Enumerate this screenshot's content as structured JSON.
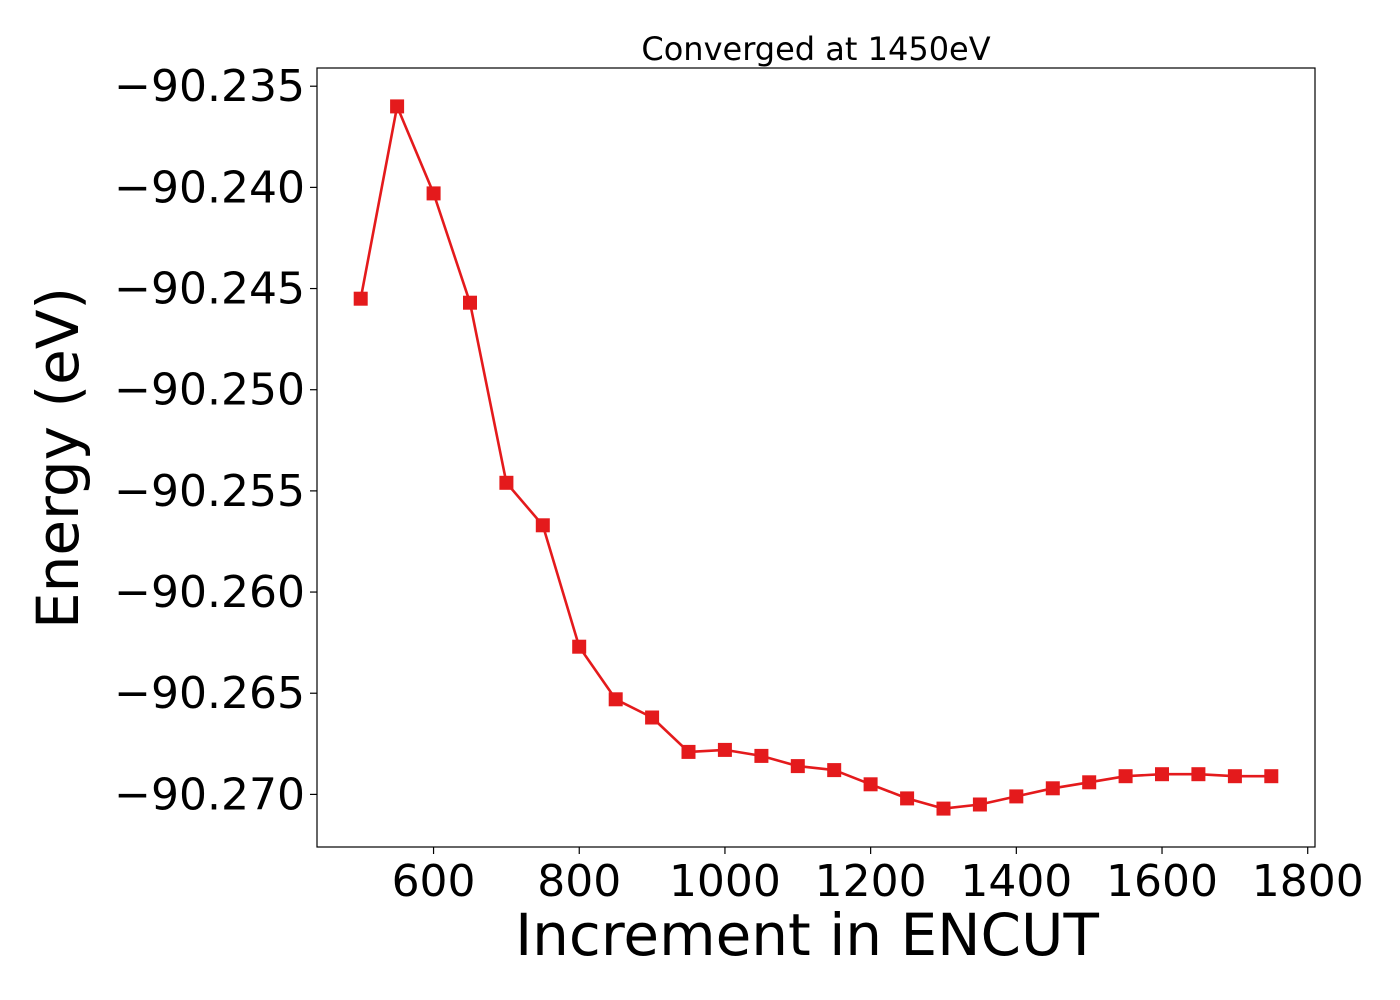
{
  "chart_data": {
    "type": "line",
    "title": "Converged at 1450eV",
    "xlabel": "Increment in ENCUT",
    "ylabel": "Energy (eV)",
    "xlim": [
      440,
      1810
    ],
    "ylim": [
      -90.2726,
      -90.2341
    ],
    "x_ticks": [
      600,
      800,
      1000,
      1200,
      1400,
      1600,
      1800
    ],
    "y_ticks": [
      -90.235,
      -90.24,
      -90.245,
      -90.25,
      -90.255,
      -90.26,
      -90.265,
      -90.27
    ],
    "y_tick_labels": [
      "−90.235",
      "−90.240",
      "−90.245",
      "−90.250",
      "−90.255",
      "−90.260",
      "−90.265",
      "−90.270"
    ],
    "grid": false,
    "legend": "none",
    "series": [
      {
        "color": "#e41a1c",
        "marker": "square",
        "x": [
          500,
          550,
          600,
          650,
          700,
          750,
          800,
          850,
          900,
          950,
          1000,
          1050,
          1100,
          1150,
          1200,
          1250,
          1300,
          1350,
          1400,
          1450,
          1500,
          1550,
          1600,
          1650,
          1700,
          1750
        ],
        "y": [
          -90.2455,
          -90.236,
          -90.2403,
          -90.2457,
          -90.2546,
          -90.2567,
          -90.2627,
          -90.2653,
          -90.2662,
          -90.2679,
          -90.2678,
          -90.2681,
          -90.2686,
          -90.2688,
          -90.2695,
          -90.2702,
          -90.2707,
          -90.2705,
          -90.2701,
          -90.2697,
          -90.2694,
          -90.2691,
          -90.269,
          -90.269,
          -90.2691,
          -90.2691
        ]
      }
    ]
  }
}
